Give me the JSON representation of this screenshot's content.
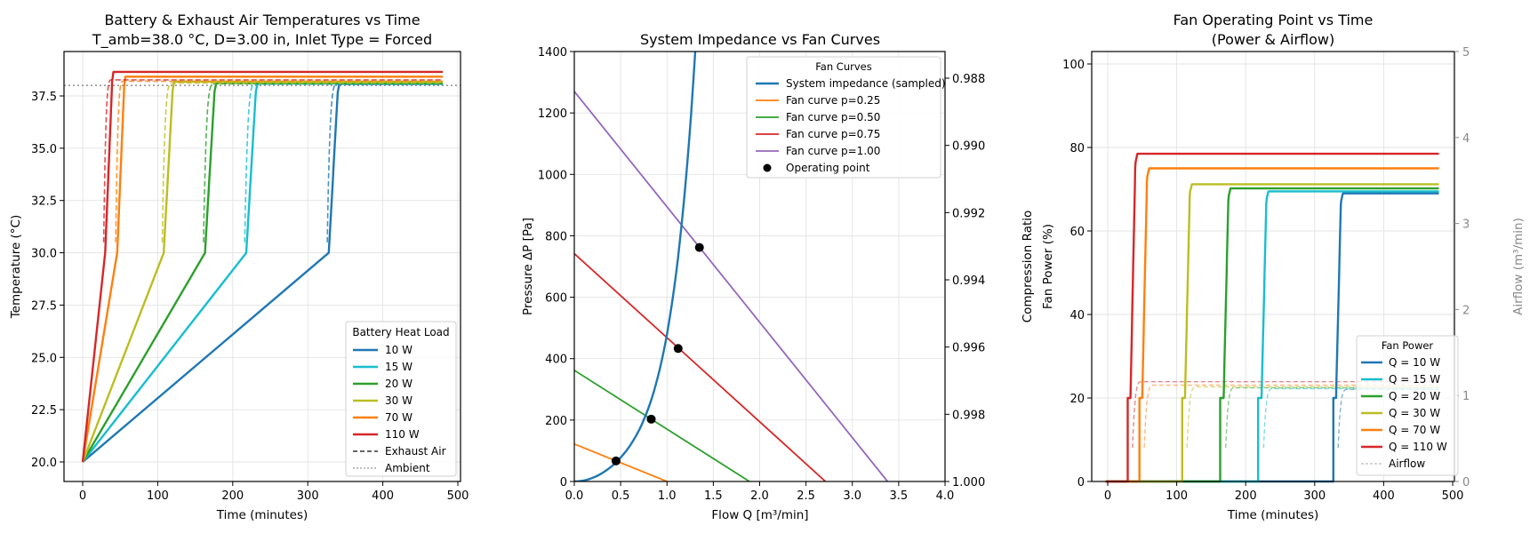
{
  "chart_data": [
    {
      "type": "line",
      "title": "Battery & Exhaust Air Temperatures vs Time",
      "subtitle": "T_amb=38.0 °C, D=3.00 in, Inlet Type = Forced",
      "xlabel": "Time (minutes)",
      "ylabel": "Temperature (°C)",
      "xlim": [
        -25,
        505
      ],
      "ylim": [
        19.0,
        39.3
      ],
      "xticks": [
        0,
        100,
        200,
        300,
        400,
        500
      ],
      "yticks": [
        20.0,
        22.5,
        25.0,
        27.5,
        30.0,
        32.5,
        35.0,
        37.5
      ],
      "ytick_labels": [
        "20.0",
        "22.5",
        "25.0",
        "27.5",
        "30.0",
        "32.5",
        "35.0",
        "37.5"
      ],
      "grid": true,
      "legend_title": "Battery Heat Load",
      "legend_position": "lower right",
      "ambient": 38.0,
      "series": [
        {
          "name": "10 W",
          "color": "#1f77b4",
          "t_knee": 328,
          "t_plateau": 342,
          "battery_final": 38.08,
          "exhaust_final": 38.05
        },
        {
          "name": "15 W",
          "color": "#17becf",
          "t_knee": 218,
          "t_plateau": 233,
          "battery_final": 38.1,
          "exhaust_final": 38.06
        },
        {
          "name": "20 W",
          "color": "#2ca02c",
          "t_knee": 163,
          "t_plateau": 178,
          "battery_final": 38.12,
          "exhaust_final": 38.08
        },
        {
          "name": "30 W",
          "color": "#bcbd22",
          "t_knee": 108,
          "t_plateau": 122,
          "battery_final": 38.18,
          "exhaust_final": 38.12
        },
        {
          "name": "70 W",
          "color": "#ff7f0e",
          "t_knee": 46,
          "t_plateau": 57,
          "battery_final": 38.42,
          "exhaust_final": 38.2
        },
        {
          "name": "110 W",
          "color": "#d62728",
          "t_knee": 30,
          "t_plateau": 41,
          "battery_final": 38.65,
          "exhaust_final": 38.27
        }
      ],
      "start_temp": 20.0,
      "knee_temp": 30.0,
      "t_end": 480,
      "legend_extra": [
        {
          "name": "Exhaust Air",
          "style": "dashed",
          "color": "#333333"
        },
        {
          "name": "Ambient",
          "style": "dotted",
          "color": "#aaaaaa"
        }
      ]
    },
    {
      "type": "line",
      "title": "System Impedance vs Fan Curves",
      "xlabel": "Flow Q [m³/min]",
      "ylabel": "Pressure ΔP [Pa]",
      "ylabel_right": "Compression Ratio",
      "xlim": [
        0.0,
        4.0
      ],
      "ylim": [
        0,
        1400
      ],
      "xticks": [
        0.0,
        0.5,
        1.0,
        1.5,
        2.0,
        2.5,
        3.0,
        3.5,
        4.0
      ],
      "xtick_labels": [
        "0.0",
        "0.5",
        "1.0",
        "1.5",
        "2.0",
        "2.5",
        "3.0",
        "3.5",
        "4.0"
      ],
      "yticks": [
        0,
        200,
        400,
        600,
        800,
        1000,
        1200,
        1400
      ],
      "yticks_right": [
        "0.988",
        "0.990",
        "0.992",
        "0.994",
        "0.996",
        "0.998",
        "1.000"
      ],
      "ylim_right": [
        1.0,
        0.9862
      ],
      "grid": true,
      "legend_title": "Fan Curves",
      "legend_position": "upper right",
      "system_impedance": {
        "name": "System impedance (sampled)",
        "color": "#1f77b4",
        "points": [
          [
            0,
            0
          ],
          [
            0.2,
            10
          ],
          [
            0.45,
            67
          ],
          [
            0.6,
            100
          ],
          [
            0.83,
            203
          ],
          [
            1.0,
            305
          ],
          [
            1.12,
            433
          ],
          [
            1.25,
            590
          ],
          [
            1.35,
            762
          ],
          [
            1.42,
            1000
          ],
          [
            1.47,
            1200
          ],
          [
            1.52,
            1400
          ]
        ]
      },
      "fan_curves": [
        {
          "name": "Fan curve p=0.25",
          "color": "#ff7f0e",
          "p0": 122,
          "qmax": 1.0
        },
        {
          "name": "Fan curve p=0.50",
          "color": "#2ca02c",
          "p0": 362,
          "qmax": 1.89
        },
        {
          "name": "Fan curve p=0.75",
          "color": "#d62728",
          "p0": 742,
          "qmax": 2.71
        },
        {
          "name": "Fan curve p=1.00",
          "color": "#9467bd",
          "p0": 1270,
          "qmax": 3.38
        }
      ],
      "operating_points": {
        "name": "Operating point",
        "points": [
          [
            0.45,
            67
          ],
          [
            0.83,
            203
          ],
          [
            1.12,
            433
          ],
          [
            1.35,
            762
          ]
        ]
      }
    },
    {
      "type": "line",
      "title": "Fan Operating Point vs Time",
      "subtitle": "(Power & Airflow)",
      "xlabel": "Time (minutes)",
      "ylabel": "Fan Power (%)",
      "ylabel_right": "Airflow (m³/min)",
      "xlim": [
        -25,
        505
      ],
      "ylim": [
        0,
        105
      ],
      "ylim_right": [
        0,
        5
      ],
      "xticks": [
        0,
        100,
        200,
        300,
        400,
        500
      ],
      "yticks": [
        0,
        20,
        40,
        60,
        80,
        100
      ],
      "yticks_right": [
        0,
        1,
        2,
        3,
        4,
        5
      ],
      "grid": true,
      "legend_title": "Fan Power",
      "legend_position": "lower right",
      "series": [
        {
          "name": "Q = 10 W",
          "color": "#1f77b4",
          "t_on": 327,
          "t_step": 332,
          "power_final": 69.0,
          "airflow_final": 1.07
        },
        {
          "name": "Q = 15 W",
          "color": "#17becf",
          "t_on": 218,
          "t_step": 224,
          "power_final": 69.5,
          "airflow_final": 1.08
        },
        {
          "name": "Q = 20 W",
          "color": "#2ca02c",
          "t_on": 163,
          "t_step": 169,
          "power_final": 70.2,
          "airflow_final": 1.09
        },
        {
          "name": "Q = 30 W",
          "color": "#bcbd22",
          "t_on": 108,
          "t_step": 113,
          "power_final": 71.2,
          "airflow_final": 1.1
        },
        {
          "name": "Q = 70 W",
          "color": "#ff7f0e",
          "t_on": 46,
          "t_step": 51,
          "power_final": 75.0,
          "airflow_final": 1.12
        },
        {
          "name": "Q = 110 W",
          "color": "#d62728",
          "t_on": 29,
          "t_step": 34,
          "power_final": 78.5,
          "airflow_final": 1.16
        }
      ],
      "t_end": 480,
      "step_power": 20,
      "legend_extra": [
        {
          "name": "Airflow",
          "style": "dashed",
          "color": "#bbbbbb"
        }
      ]
    }
  ],
  "panels": {
    "p1": {
      "title": "Battery & Exhaust Air Temperatures vs Time",
      "subtitle": "T_amb=38.0 °C, D=3.00 in, Inlet Type = Forced",
      "xlabel": "Time (minutes)",
      "ylabel": "Temperature (°C)",
      "legend_title": "Battery Heat Load",
      "legend_items": [
        "10 W",
        "15 W",
        "20 W",
        "30 W",
        "70 W",
        "110 W",
        "Exhaust Air",
        "Ambient"
      ]
    },
    "p2": {
      "title": "System Impedance vs Fan Curves",
      "xlabel": "Flow Q [m³/min]",
      "ylabel": "Pressure ΔP [Pa]",
      "ylabel_right": "Compression Ratio",
      "legend_title": "Fan Curves",
      "legend_items": [
        "System impedance (sampled)",
        "Fan curve p=0.25",
        "Fan curve p=0.50",
        "Fan curve p=0.75",
        "Fan curve p=1.00",
        "Operating point"
      ]
    },
    "p3": {
      "title": "Fan Operating Point vs Time",
      "subtitle": "(Power & Airflow)",
      "xlabel": "Time (minutes)",
      "ylabel": "Fan Power (%)",
      "ylabel_right": "Airflow (m³/min)",
      "legend_title": "Fan Power",
      "legend_items": [
        "Q = 10 W",
        "Q = 15 W",
        "Q = 20 W",
        "Q = 30 W",
        "Q = 70 W",
        "Q = 110 W",
        "Airflow"
      ]
    }
  }
}
